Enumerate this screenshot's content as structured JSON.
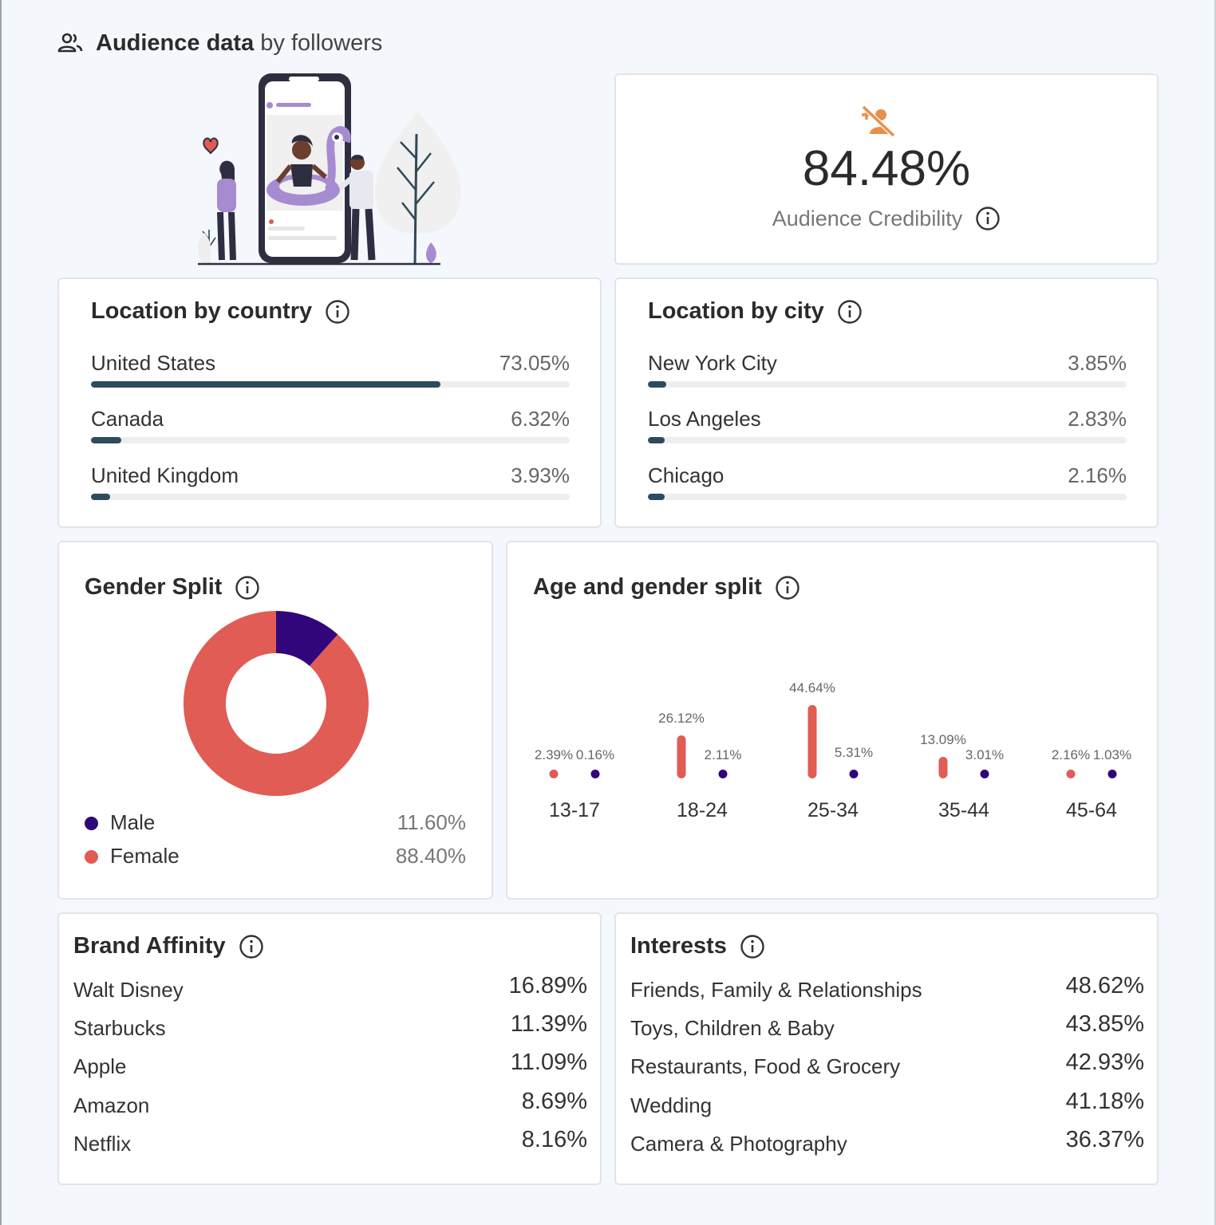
{
  "header": {
    "title_bold": "Audience data",
    "title_light": "by followers",
    "icon": "people-icon"
  },
  "credibility": {
    "value": "84.48%",
    "label": "Audience Credibility",
    "icon": "fake-follower-icon"
  },
  "location_country": {
    "title": "Location by country",
    "items": [
      {
        "name": "United States",
        "pct": "73.05%",
        "value": 73.05
      },
      {
        "name": "Canada",
        "pct": "6.32%",
        "value": 6.32
      },
      {
        "name": "United Kingdom",
        "pct": "3.93%",
        "value": 3.93
      }
    ]
  },
  "location_city": {
    "title": "Location by city",
    "items": [
      {
        "name": "New York City",
        "pct": "3.85%",
        "value": 3.85
      },
      {
        "name": "Los Angeles",
        "pct": "2.83%",
        "value": 2.83
      },
      {
        "name": "Chicago",
        "pct": "2.16%",
        "value": 2.16
      }
    ]
  },
  "gender": {
    "title": "Gender Split",
    "male_label": "Male",
    "male_pct": "11.60%",
    "female_label": "Female",
    "female_pct": "88.40%"
  },
  "age_gender": {
    "title": "Age and gender split"
  },
  "brand": {
    "title": "Brand Affinity",
    "items": [
      {
        "name": "Walt Disney",
        "pct": "16.89%"
      },
      {
        "name": "Starbucks",
        "pct": "11.39%"
      },
      {
        "name": "Apple",
        "pct": "11.09%"
      },
      {
        "name": "Amazon",
        "pct": "8.69%"
      },
      {
        "name": "Netflix",
        "pct": "8.16%"
      }
    ]
  },
  "interests": {
    "title": "Interests",
    "items": [
      {
        "name": "Friends, Family & Relationships",
        "pct": "48.62%"
      },
      {
        "name": "Toys, Children & Baby",
        "pct": "43.85%"
      },
      {
        "name": "Restaurants, Food & Grocery",
        "pct": "42.93%"
      },
      {
        "name": "Wedding",
        "pct": "41.18%"
      },
      {
        "name": "Camera & Photography",
        "pct": "36.37%"
      }
    ]
  },
  "colors": {
    "male": "#30067a",
    "female": "#e05c55",
    "bar": "#2d4b5e",
    "accent": "#e8904a"
  },
  "chart_data": [
    {
      "type": "pie",
      "title": "Gender Split",
      "categories": [
        "Male",
        "Female"
      ],
      "values": [
        11.6,
        88.4
      ],
      "donut": true
    },
    {
      "type": "bar",
      "title": "Age and gender split",
      "categories": [
        "13-17",
        "18-24",
        "25-34",
        "35-44",
        "45-64"
      ],
      "series": [
        {
          "name": "Female",
          "values": [
            2.39,
            26.12,
            44.64,
            13.09,
            2.16
          ],
          "labels": [
            "2.39%",
            "26.12%",
            "44.64%",
            "13.09%",
            "2.16%"
          ]
        },
        {
          "name": "Male",
          "values": [
            0.16,
            2.11,
            5.31,
            3.01,
            1.03
          ],
          "labels": [
            "0.16%",
            "2.11%",
            "5.31%",
            "3.01%",
            "1.03%"
          ]
        }
      ],
      "ylim": [
        0,
        44.64
      ]
    }
  ]
}
